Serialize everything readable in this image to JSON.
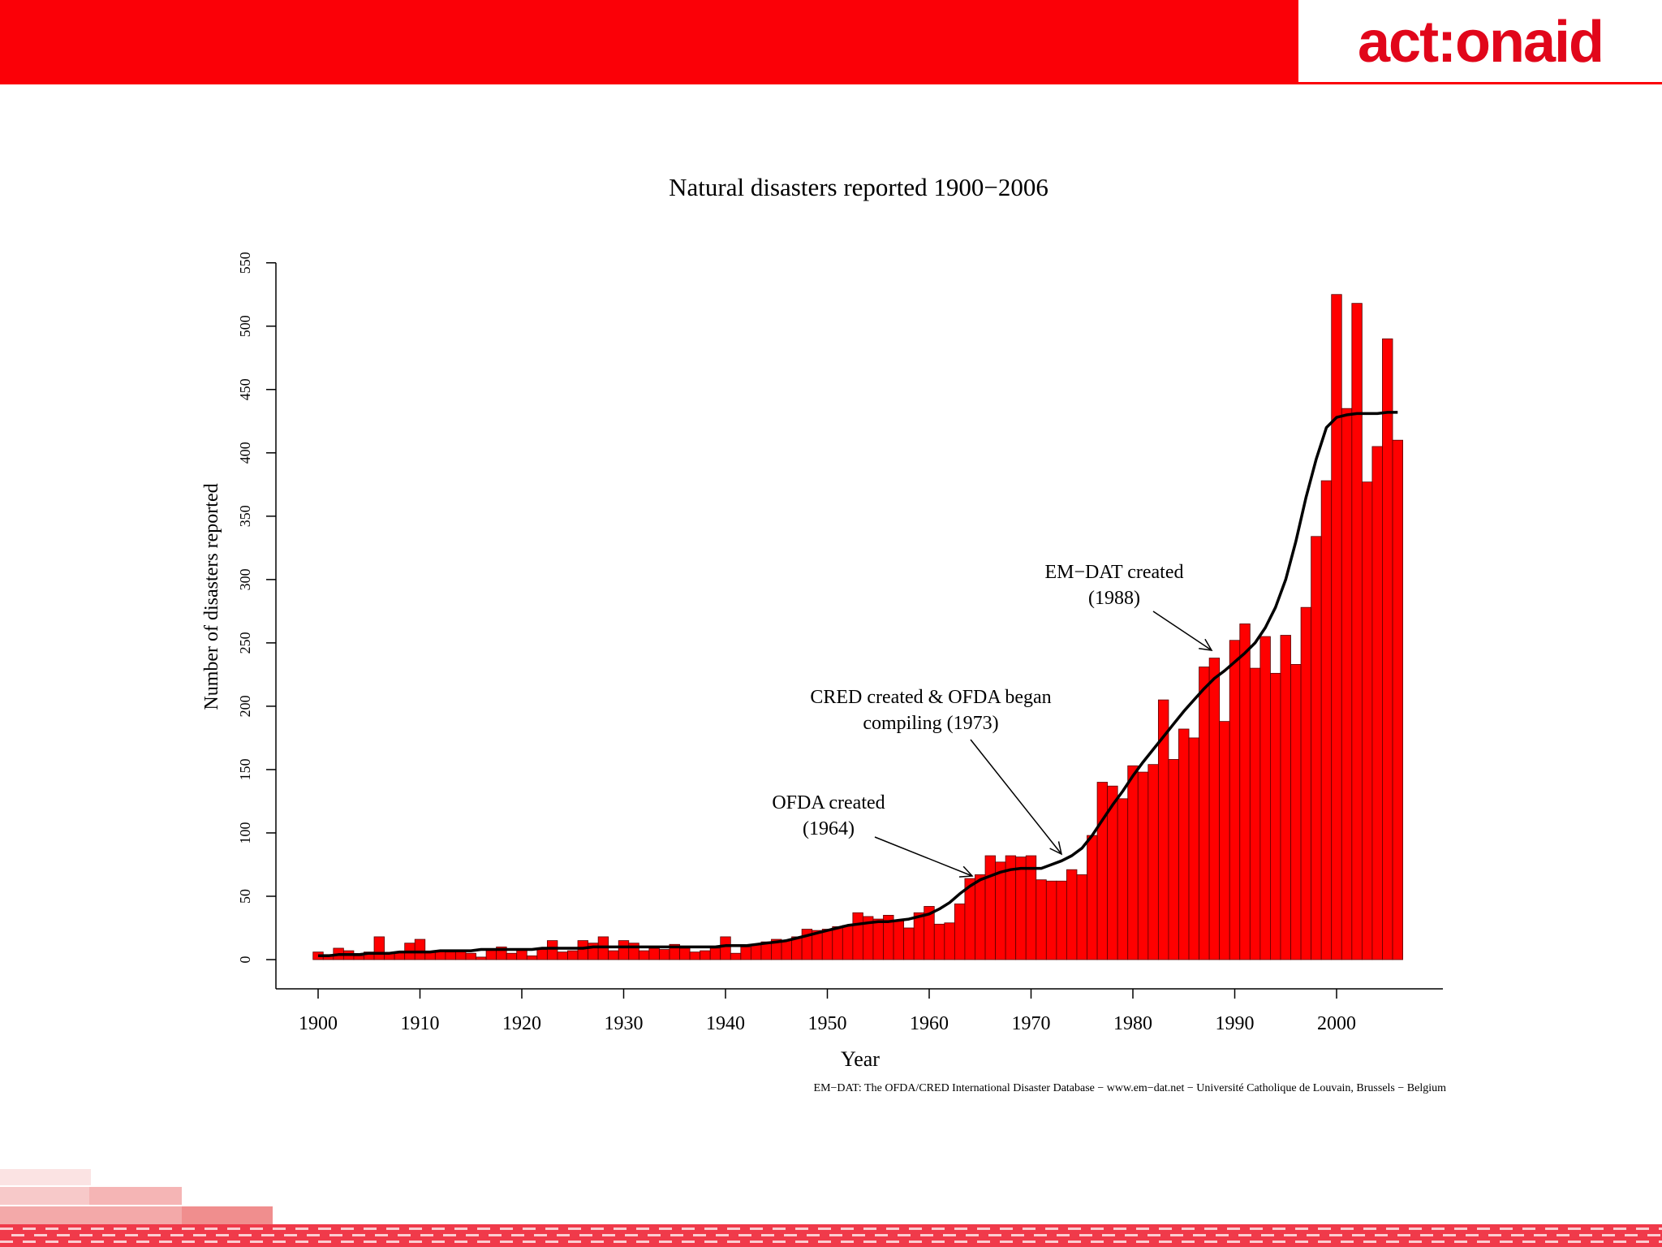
{
  "header": {
    "brand_color": "#fb0007",
    "logo_text": "act:onaid",
    "logo_color": "#e1061a"
  },
  "chart_data": {
    "type": "bar",
    "title": "Natural disasters reported 1900−2006",
    "xlabel": "Year",
    "ylabel": "Number of disasters reported",
    "x_ticks": [
      "1900",
      "1910",
      "1920",
      "1930",
      "1940",
      "1950",
      "1960",
      "1970",
      "1980",
      "1990",
      "2000"
    ],
    "y_ticks": [
      "0",
      "50",
      "100",
      "150",
      "200",
      "250",
      "300",
      "350",
      "400",
      "450",
      "500",
      "550"
    ],
    "ylim": [
      0,
      550
    ],
    "xlim": [
      1896,
      2009
    ],
    "bar_color": "#ff0000",
    "trend_color": "#000000",
    "source": "EM−DAT: The OFDA/CRED International Disaster Database − www.em−dat.net − Université Catholique de Louvain, Brussels − Belgium",
    "annotations": [
      {
        "text_lines": [
          "OFDA created",
          "(1964)"
        ],
        "year": 1964
      },
      {
        "text_lines": [
          "CRED created & OFDA began",
          "compiling (1973)"
        ],
        "year": 1973
      },
      {
        "text_lines": [
          "EM−DAT created",
          "(1988)"
        ],
        "year": 1988
      }
    ],
    "x": [
      1900,
      1901,
      1902,
      1903,
      1904,
      1905,
      1906,
      1907,
      1908,
      1909,
      1910,
      1911,
      1912,
      1913,
      1914,
      1915,
      1916,
      1917,
      1918,
      1919,
      1920,
      1921,
      1922,
      1923,
      1924,
      1925,
      1926,
      1927,
      1928,
      1929,
      1930,
      1931,
      1932,
      1933,
      1934,
      1935,
      1936,
      1937,
      1938,
      1939,
      1940,
      1941,
      1942,
      1943,
      1944,
      1945,
      1946,
      1947,
      1948,
      1949,
      1950,
      1951,
      1952,
      1953,
      1954,
      1955,
      1956,
      1957,
      1958,
      1959,
      1960,
      1961,
      1962,
      1963,
      1964,
      1965,
      1966,
      1967,
      1968,
      1969,
      1970,
      1971,
      1972,
      1973,
      1974,
      1975,
      1976,
      1977,
      1978,
      1979,
      1980,
      1981,
      1982,
      1983,
      1984,
      1985,
      1986,
      1987,
      1988,
      1989,
      1990,
      1991,
      1992,
      1993,
      1994,
      1995,
      1996,
      1997,
      1998,
      1999,
      2000,
      2001,
      2002,
      2003,
      2004,
      2005,
      2006
    ],
    "values": [
      6,
      4,
      9,
      7,
      3,
      6,
      18,
      5,
      6,
      13,
      16,
      6,
      7,
      6,
      7,
      5,
      2,
      8,
      10,
      5,
      8,
      3,
      8,
      15,
      6,
      7,
      15,
      13,
      18,
      7,
      15,
      13,
      7,
      9,
      8,
      12,
      9,
      6,
      7,
      9,
      18,
      5,
      10,
      12,
      14,
      16,
      15,
      18,
      24,
      23,
      24,
      26,
      27,
      37,
      34,
      32,
      35,
      31,
      25,
      37,
      42,
      28,
      29,
      44,
      64,
      67,
      82,
      77,
      82,
      81,
      82,
      63,
      62,
      62,
      71,
      67,
      98,
      140,
      137,
      127,
      153,
      148,
      154,
      205,
      158,
      182,
      175,
      231,
      238,
      188,
      252,
      265,
      230,
      255,
      226,
      256,
      233,
      278,
      334,
      378,
      525,
      435,
      518,
      377,
      405,
      490,
      410
    ],
    "trend": [
      3,
      3,
      4,
      4,
      4,
      5,
      5,
      5,
      6,
      6,
      6,
      6,
      7,
      7,
      7,
      7,
      8,
      8,
      8,
      8,
      8,
      8,
      9,
      9,
      9,
      9,
      9,
      10,
      10,
      10,
      10,
      10,
      10,
      10,
      10,
      10,
      10,
      10,
      10,
      10,
      11,
      11,
      11,
      12,
      13,
      14,
      15,
      17,
      19,
      21,
      23,
      25,
      27,
      28,
      29,
      30,
      30,
      31,
      32,
      34,
      36,
      40,
      45,
      52,
      58,
      63,
      66,
      69,
      71,
      72,
      72,
      72,
      75,
      78,
      82,
      88,
      98,
      110,
      122,
      133,
      145,
      156,
      166,
      176,
      186,
      196,
      205,
      214,
      222,
      228,
      235,
      242,
      250,
      262,
      278,
      300,
      330,
      365,
      395,
      420,
      428,
      430,
      431,
      431,
      431,
      432,
      432
    ]
  }
}
